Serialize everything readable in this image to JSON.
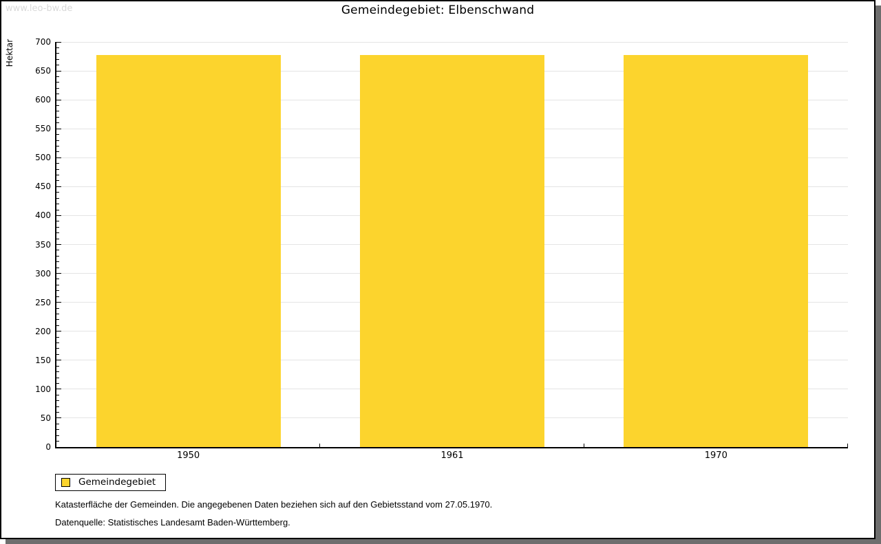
{
  "watermark": "www.leo-bw.de",
  "chart_data": {
    "type": "bar",
    "title": "Gemeindegebiet: Elbenschwand",
    "categories": [
      "1950",
      "1961",
      "1970"
    ],
    "series": [
      {
        "name": "Gemeindegebiet",
        "values": [
          678,
          678,
          678
        ],
        "color": "#fcd42d"
      }
    ],
    "xlabel": "",
    "ylabel": "Hektar",
    "ylim": [
      0,
      700
    ],
    "y_major_step": 50,
    "y_minor_step": 10,
    "grid": true,
    "legend_position": "bottom-left",
    "grid_color": "#e4e4e4",
    "bar_width_fraction": 0.7
  },
  "footnotes": [
    "Katasterfläche der Gemeinden. Die angegebenen Daten beziehen sich auf den Gebietsstand vom 27.05.1970.",
    "Datenquelle: Statistisches Landesamt Baden-Württemberg."
  ]
}
